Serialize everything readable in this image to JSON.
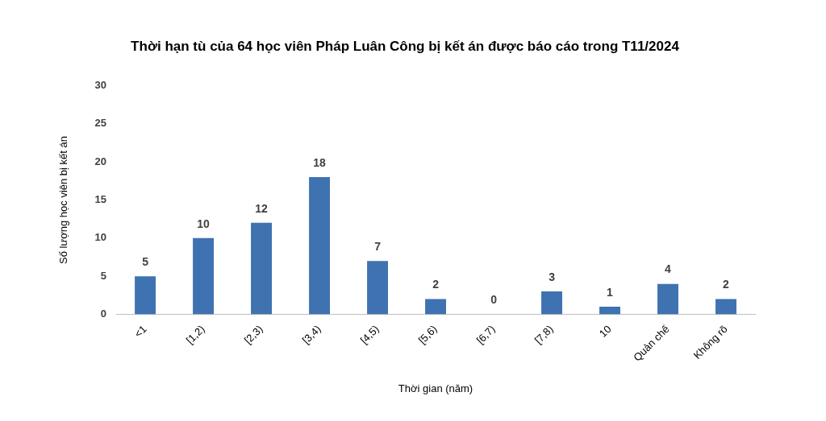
{
  "chart_data": {
    "type": "bar",
    "title": "Thời hạn tù của 64 học viên Pháp Luân Công bị kết án được báo cáo trong T11/2024",
    "xlabel": "Thời gian (năm)",
    "ylabel": "Số lượng học viên bị kết án",
    "categories": [
      "<1",
      "[1,2)",
      "[2,3)",
      "[3,4)",
      "[4,5)",
      "[5,6)",
      "[6,7)",
      "[7,8)",
      "10",
      "Quản chế",
      "Không rõ"
    ],
    "values": [
      5,
      10,
      12,
      18,
      7,
      2,
      0,
      3,
      1,
      4,
      2
    ],
    "color": "#3f72b0",
    "ylim": [
      0,
      30
    ],
    "yticks": [
      0,
      5,
      10,
      15,
      20,
      25,
      30
    ],
    "grid": false,
    "data_labels": true,
    "legend": false
  }
}
